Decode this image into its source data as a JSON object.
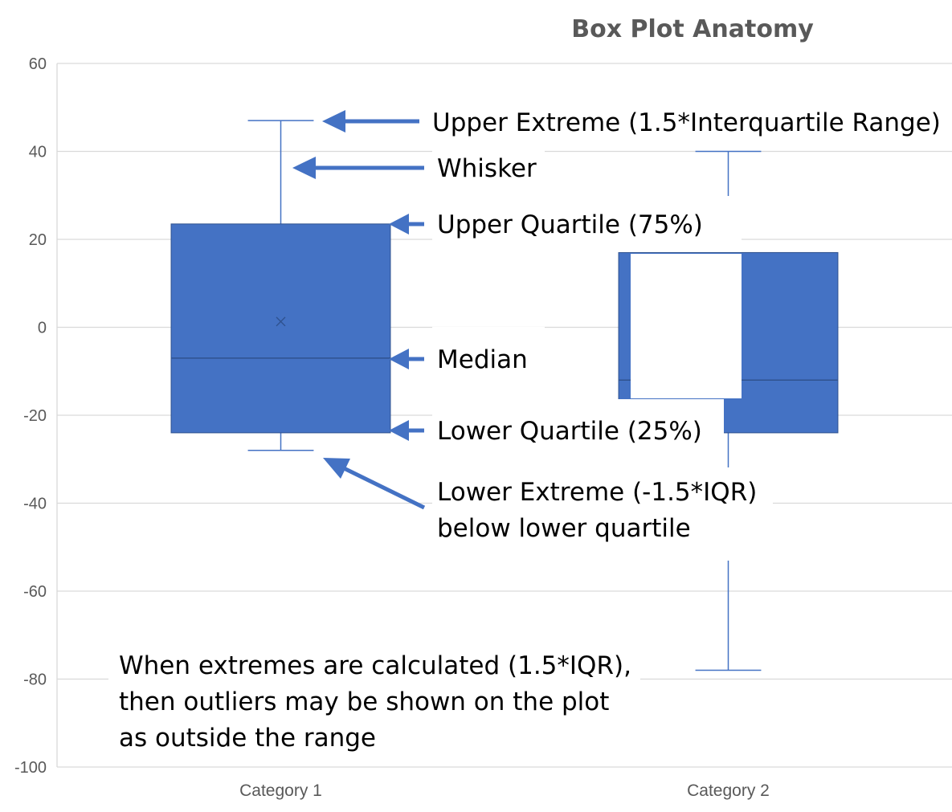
{
  "chart_data": {
    "type": "box",
    "title": "Box Plot Anatomy",
    "categories": [
      "Category 1",
      "Category 2"
    ],
    "ylim": [
      -100,
      60
    ],
    "yticks": [
      60,
      40,
      20,
      0,
      -20,
      -40,
      -60,
      -80,
      -100
    ],
    "grid": true,
    "boxes": [
      {
        "category": "Category 1",
        "max": 47,
        "q3": 23.5,
        "median": -7,
        "mean": 1.3,
        "q1": -24,
        "min": -28
      },
      {
        "category": "Category 2",
        "max": 40,
        "q3": 17,
        "median": -12,
        "mean": -11,
        "q1": -24,
        "min": -78
      }
    ],
    "annotations": [
      {
        "text": "Upper Extreme (1.5*Interquartile Range)"
      },
      {
        "text": "Whisker"
      },
      {
        "text": "Upper Quartile (75%)"
      },
      {
        "text": "Median"
      },
      {
        "text": "Lower Quartile (25%)"
      },
      {
        "text": "Lower Extreme (-1.5*IQR)"
      },
      {
        "text": "below lower quartile"
      }
    ],
    "note": [
      "When extremes are calculated (1.5*IQR),",
      "then outliers may be shown on the plot",
      "as outside the range"
    ]
  },
  "colors": {
    "box_fill": "#4472c4",
    "median_line": "#2f528f",
    "whisker": "#4472c4",
    "arrow": "#4472c4",
    "text": "#000000",
    "axis_text": "#595959",
    "grid": "#d9d9d9"
  }
}
